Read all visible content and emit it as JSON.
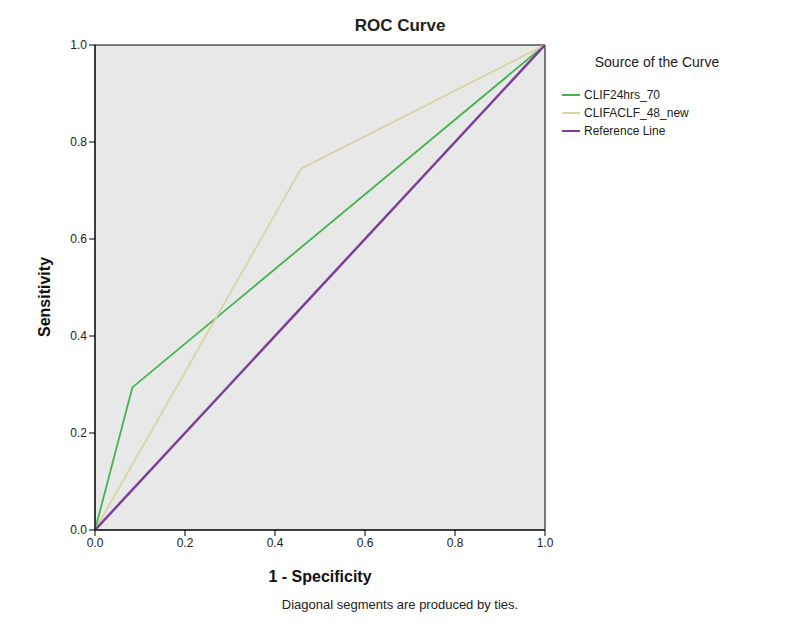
{
  "chart_data": {
    "type": "line",
    "title": "ROC Curve",
    "x_label": "1 - Specificity",
    "y_label": "Sensitivity",
    "xlim": [
      0,
      1
    ],
    "ylim": [
      0,
      1
    ],
    "xticks": [
      {
        "value": 0,
        "label": "0.0"
      },
      0.2,
      0.4,
      0.6,
      0.8,
      {
        "value": 1,
        "label": "1.0"
      }
    ],
    "yticks": [
      {
        "value": 0,
        "label": "0.0"
      },
      0.2,
      0.4,
      0.6,
      0.8,
      {
        "value": 1,
        "label": "1.0"
      }
    ],
    "grid": false,
    "legend": "right",
    "legend_title": "Source of the Curve",
    "footnote": "Diagonal segments are produced by ties.",
    "series": [
      {
        "name": "CLIF24hrs_70",
        "color": "#44b34d",
        "marker": "none",
        "line_style": "solid",
        "x": [
          0,
          0.083,
          1
        ],
        "values": [
          0,
          0.294,
          1
        ]
      },
      {
        "name": "CLIFACLF_48_new",
        "color": "#d6d3a4",
        "marker": "none",
        "line_style": "solid",
        "x": [
          0,
          0.458,
          1
        ],
        "values": [
          0,
          0.745,
          1
        ]
      },
      {
        "name": "Reference Line",
        "color": "#7b3f98",
        "marker": "none",
        "line_style": "solid",
        "x": [
          0,
          1
        ],
        "values": [
          0,
          1
        ]
      }
    ]
  }
}
